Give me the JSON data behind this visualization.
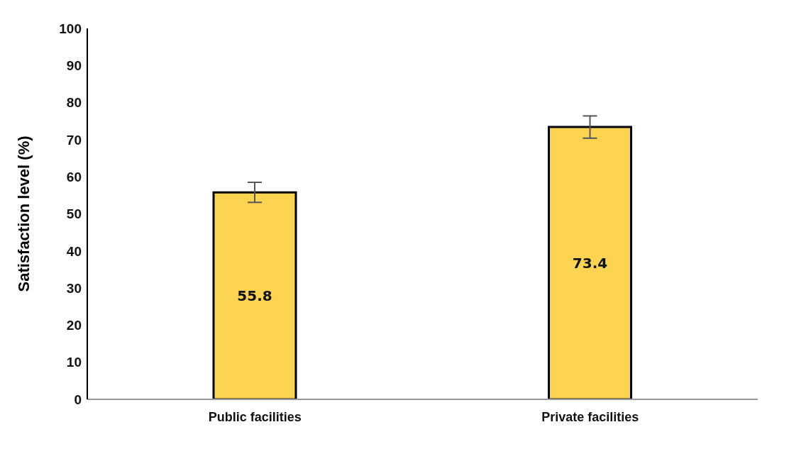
{
  "chart_data": {
    "type": "bar",
    "ylabel": "Satisfaction level (%)",
    "categories": [
      "Public  facilities",
      "Private  facilities"
    ],
    "values": [
      55.8,
      73.4
    ],
    "color": "#fdd44f",
    "errors": [
      2.7,
      3.0
    ],
    "data_labels": true,
    "ylim": [
      0,
      100
    ],
    "yticks": [
      0,
      10,
      20,
      30,
      40,
      50,
      60,
      70,
      80,
      90,
      100
    ],
    "grid": false
  }
}
